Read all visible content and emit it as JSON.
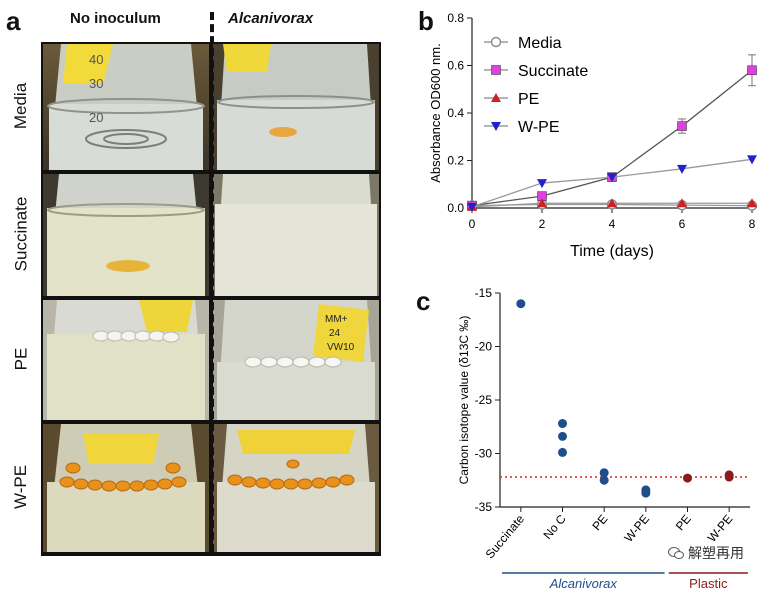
{
  "panel_a": {
    "letter": "a",
    "columns": [
      "No inoculum",
      "Alcanivorax"
    ],
    "rows": [
      "Media",
      "Succinate",
      "PE",
      "W-PE"
    ],
    "flask_scale": [
      "40",
      "30",
      "20"
    ],
    "tube_label": [
      "MM+",
      "24",
      "VW10"
    ]
  },
  "panel_b": {
    "letter": "b"
  },
  "panel_c": {
    "letter": "c"
  },
  "watermark": {
    "text": "解塑再用"
  },
  "chart_data": [
    {
      "type": "line",
      "title": "",
      "xlabel": "Time (days)",
      "ylabel": "Absorbance OD600 nm.",
      "xlim": [
        0,
        8
      ],
      "ylim": [
        0,
        0.8
      ],
      "x_ticks": [
        0,
        2,
        4,
        6,
        8
      ],
      "y_ticks": [
        0.0,
        0.2,
        0.4,
        0.6,
        0.8
      ],
      "x_tick_labels": [
        "0",
        "2",
        "4",
        "6",
        "8"
      ],
      "y_tick_labels": [
        "0.0",
        "0.2",
        "0.4",
        "0.6",
        "0.8"
      ],
      "legend_position": "top-left",
      "series": [
        {
          "name": "Media",
          "marker": "circle-open",
          "color": "#888888",
          "x": [
            0,
            2,
            4,
            6,
            8
          ],
          "values": [
            0.01,
            0.015,
            0.015,
            0.012,
            0.01
          ]
        },
        {
          "name": "Succinate",
          "marker": "square",
          "color": "#e040e0",
          "x": [
            0,
            2,
            4,
            6,
            8
          ],
          "values": [
            0.01,
            0.05,
            0.13,
            0.345,
            0.58
          ],
          "errors": [
            0,
            0.01,
            0.01,
            0.03,
            0.065
          ]
        },
        {
          "name": "PE",
          "marker": "triangle-up",
          "color": "#cc2222",
          "x": [
            0,
            2,
            4,
            6,
            8
          ],
          "values": [
            0.005,
            0.02,
            0.02,
            0.02,
            0.02
          ]
        },
        {
          "name": "W-PE",
          "marker": "triangle-down",
          "color": "#2222cc",
          "x": [
            0,
            2,
            4,
            6,
            8
          ],
          "values": [
            0.005,
            0.105,
            0.13,
            0.165,
            0.205
          ]
        }
      ]
    },
    {
      "type": "scatter",
      "title": "",
      "xlabel": "",
      "ylabel": "Carbon isotope value (δ13C ‰)",
      "ylim": [
        -35,
        -15
      ],
      "y_ticks": [
        -15,
        -20,
        -25,
        -30,
        -35
      ],
      "y_tick_labels": [
        "-15",
        "-20",
        "-25",
        "-30",
        "-35"
      ],
      "categories": [
        "Succinate",
        "No C",
        "PE",
        "W-PE",
        "PE",
        "W-PE"
      ],
      "points": [
        {
          "category_index": 0,
          "y": -16.0,
          "color": "#1f4e8c"
        },
        {
          "category_index": 1,
          "y": -27.2,
          "color": "#1f4e8c"
        },
        {
          "category_index": 1,
          "y": -28.4,
          "color": "#1f4e8c"
        },
        {
          "category_index": 1,
          "y": -29.9,
          "color": "#1f4e8c"
        },
        {
          "category_index": 2,
          "y": -31.8,
          "color": "#1f4e8c"
        },
        {
          "category_index": 2,
          "y": -32.5,
          "color": "#1f4e8c"
        },
        {
          "category_index": 3,
          "y": -33.4,
          "color": "#1f4e8c"
        },
        {
          "category_index": 3,
          "y": -33.7,
          "color": "#1f4e8c"
        },
        {
          "category_index": 4,
          "y": -32.3,
          "color": "#8b1a1a"
        },
        {
          "category_index": 5,
          "y": -32.0,
          "color": "#8b1a1a"
        },
        {
          "category_index": 5,
          "y": -32.2,
          "color": "#8b1a1a"
        }
      ],
      "reference_line": {
        "y": -32.2,
        "color": "#dd2222",
        "style": "dotted"
      },
      "groups": [
        {
          "label": "Alcanivorax",
          "from_index": 0,
          "to_index": 3,
          "color": "#1f4e8c"
        },
        {
          "label": "Plastic",
          "from_index": 4,
          "to_index": 5,
          "color": "#8b1a1a"
        }
      ]
    }
  ]
}
